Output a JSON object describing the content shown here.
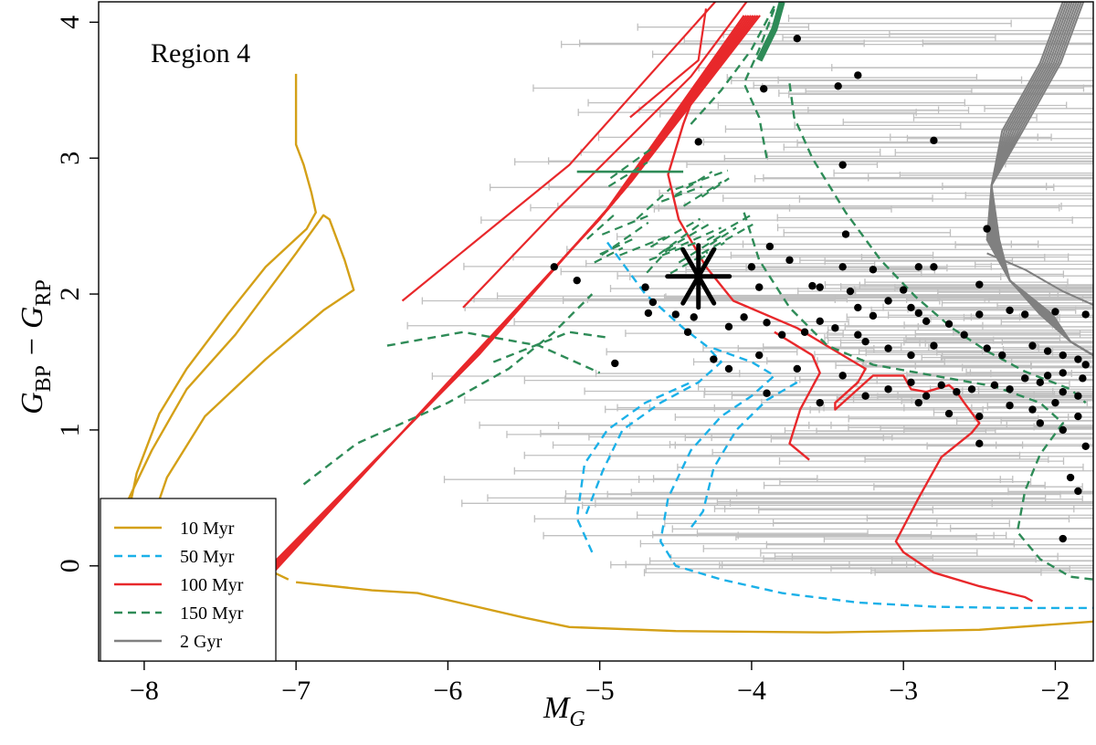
{
  "chart_data": {
    "type": "scatter",
    "title": "",
    "region_label": "Region 4",
    "xlabel": "M_G",
    "xlabel_main": "M",
    "xlabel_sub": "G",
    "ylabel": "G_BP − G_RP",
    "ylabel_parts": [
      "G",
      "BP",
      " − G",
      "RP"
    ],
    "xlim": [
      -8.3,
      -1.75
    ],
    "ylim": [
      -0.7,
      4.15
    ],
    "x_ticks": [
      -8,
      -7,
      -6,
      -5,
      -4,
      -3,
      -2
    ],
    "y_ticks": [
      0,
      1,
      2,
      3,
      4
    ],
    "x_tick_labels": [
      "−8",
      "−7",
      "−6",
      "−5",
      "−4",
      "−3",
      "−2"
    ],
    "y_tick_labels": [
      "0",
      "1",
      "2",
      "3",
      "4"
    ],
    "legend": {
      "position": "bottom-left",
      "entries": [
        {
          "label": "10 Myr",
          "color": "#D4A017",
          "dash": "solid"
        },
        {
          "label": "50 Myr",
          "color": "#1AB0E8",
          "dash": "dashed"
        },
        {
          "label": "100 Myr",
          "color": "#E8282B",
          "dash": "solid"
        },
        {
          "label": "150 Myr",
          "color": "#2E8B57",
          "dash": "dashed"
        },
        {
          "label": "2 Gyr",
          "color": "#808080",
          "dash": "solid"
        }
      ]
    },
    "highlight_star": {
      "x": -4.35,
      "y": 2.13,
      "color": "#000000"
    },
    "errorbar_color": "#C0C0C0",
    "points": [
      [
        -3.7,
        3.88
      ],
      [
        -3.92,
        3.51
      ],
      [
        -3.43,
        3.53
      ],
      [
        -3.3,
        3.61
      ],
      [
        -2.8,
        3.13
      ],
      [
        -4.35,
        3.12
      ],
      [
        -3.4,
        2.95
      ],
      [
        -2.45,
        2.48
      ],
      [
        -3.88,
        2.35
      ],
      [
        -3.38,
        2.44
      ],
      [
        -3.75,
        2.25
      ],
      [
        -3.4,
        2.2
      ],
      [
        -3.2,
        2.18
      ],
      [
        -2.9,
        2.2
      ],
      [
        -2.8,
        2.2
      ],
      [
        -2.5,
        2.07
      ],
      [
        -5.3,
        2.2
      ],
      [
        -5.15,
        2.1
      ],
      [
        -4.7,
        2.05
      ],
      [
        -4.65,
        1.94
      ],
      [
        -4.68,
        1.86
      ],
      [
        -4.0,
        2.2
      ],
      [
        -3.95,
        2.05
      ],
      [
        -3.6,
        2.06
      ],
      [
        -3.55,
        2.05
      ],
      [
        -3.35,
        2.02
      ],
      [
        -3.0,
        2.03
      ],
      [
        -3.1,
        1.95
      ],
      [
        -3.3,
        1.9
      ],
      [
        -3.2,
        1.84
      ],
      [
        -2.95,
        1.9
      ],
      [
        -2.9,
        1.86
      ],
      [
        -2.85,
        1.8
      ],
      [
        -2.7,
        1.78
      ],
      [
        -2.5,
        1.85
      ],
      [
        -2.3,
        1.88
      ],
      [
        -2.2,
        1.85
      ],
      [
        -2.0,
        1.87
      ],
      [
        -1.8,
        1.85
      ],
      [
        -4.5,
        1.85
      ],
      [
        -4.38,
        1.83
      ],
      [
        -4.15,
        1.76
      ],
      [
        -4.05,
        1.83
      ],
      [
        -3.9,
        1.79
      ],
      [
        -3.8,
        1.7
      ],
      [
        -3.65,
        1.72
      ],
      [
        -3.55,
        1.8
      ],
      [
        -3.45,
        1.75
      ],
      [
        -3.3,
        1.7
      ],
      [
        -3.25,
        1.65
      ],
      [
        -3.1,
        1.6
      ],
      [
        -2.95,
        1.55
      ],
      [
        -2.8,
        1.62
      ],
      [
        -2.6,
        1.7
      ],
      [
        -2.45,
        1.6
      ],
      [
        -2.35,
        1.55
      ],
      [
        -2.15,
        1.62
      ],
      [
        -2.05,
        1.58
      ],
      [
        -1.95,
        1.55
      ],
      [
        -1.85,
        1.52
      ],
      [
        -1.8,
        1.48
      ],
      [
        -1.82,
        1.38
      ],
      [
        -1.95,
        1.42
      ],
      [
        -2.05,
        1.4
      ],
      [
        -2.1,
        1.35
      ],
      [
        -2.2,
        1.38
      ],
      [
        -2.3,
        1.3
      ],
      [
        -2.4,
        1.33
      ],
      [
        -2.55,
        1.3
      ],
      [
        -2.65,
        1.28
      ],
      [
        -2.75,
        1.33
      ],
      [
        -2.85,
        1.25
      ],
      [
        -2.95,
        1.35
      ],
      [
        -3.1,
        1.3
      ],
      [
        -3.25,
        1.25
      ],
      [
        -3.4,
        1.4
      ],
      [
        -3.55,
        1.2
      ],
      [
        -3.7,
        1.45
      ],
      [
        -3.95,
        1.55
      ],
      [
        -4.15,
        1.45
      ],
      [
        -4.25,
        1.52
      ],
      [
        -4.42,
        1.72
      ],
      [
        -4.9,
        1.49
      ],
      [
        -1.95,
        1.28
      ],
      [
        -1.85,
        1.25
      ],
      [
        -2.0,
        1.2
      ],
      [
        -2.15,
        1.15
      ],
      [
        -2.3,
        1.18
      ],
      [
        -2.5,
        1.1
      ],
      [
        -2.7,
        1.12
      ],
      [
        -2.9,
        1.2
      ],
      [
        -1.85,
        1.1
      ],
      [
        -1.95,
        1.0
      ],
      [
        -2.1,
        1.05
      ],
      [
        -2.5,
        0.9
      ],
      [
        -1.8,
        0.88
      ],
      [
        -1.85,
        0.55
      ],
      [
        -1.9,
        0.65
      ],
      [
        -1.95,
        0.2
      ],
      [
        -3.9,
        1.27
      ]
    ]
  }
}
